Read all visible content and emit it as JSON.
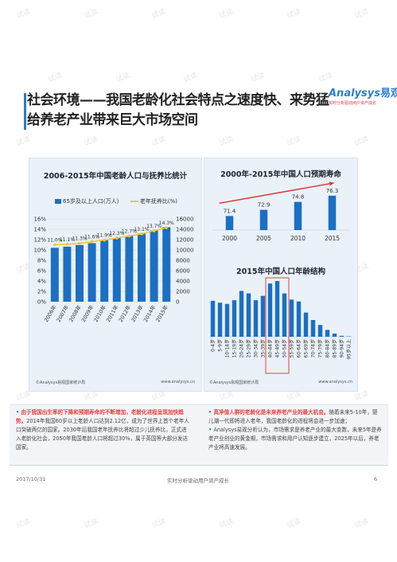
{
  "watermark": "试读",
  "title": {
    "line1": "社会环境——我国老龄化社会特点之速度快、来势猛",
    "line2": "给养老产业带来巨大市场空间"
  },
  "logo": {
    "brand_prefix": "Analysys",
    "brand_cn": "易观",
    "slogan": "实时分析驱动用户资产成长"
  },
  "left_panel": {
    "source": "©Analysys易观国家统计局",
    "site": "www.analysys.cn"
  },
  "right_panel": {
    "source": "©Analysys易观国家统计局",
    "site": "www.analysys.cn"
  },
  "colors": {
    "bar": "#1b6fc4",
    "line": "#f2c43a",
    "arrow": "#e03030",
    "accent": "#2a7fd0",
    "highlight": "#e84040"
  },
  "chart_data": [
    {
      "type": "bar",
      "title": "2006-2015年中国老龄人口与抚养比统计",
      "categories": [
        "2006年",
        "2007年",
        "2008年",
        "2009年",
        "2010年",
        "2011年",
        "2012年",
        "2013年",
        "2014年",
        "2015年"
      ],
      "series": [
        {
          "name": "65岁及以上人口(万人)",
          "type": "bar",
          "axis": "right",
          "values": [
            10419,
            10636,
            10956,
            11307,
            11894,
            12288,
            12714,
            13161,
            13755,
            14386
          ]
        },
        {
          "name": "老年抚养比(%)",
          "type": "line",
          "axis": "left",
          "values": [
            11.0,
            11.1,
            11.3,
            11.6,
            11.9,
            12.3,
            12.7,
            13.1,
            13.7,
            14.3
          ],
          "labels": [
            "11.0%",
            "11.1%",
            "11.3%",
            "11.6%",
            "11.9%",
            "12.3%",
            "12.7%",
            "13.1%",
            "13.7%",
            "14.3%"
          ]
        }
      ],
      "yleft_ticks": [
        "16%",
        "14%",
        "12%",
        "10%",
        "8%",
        "6%",
        "4%",
        "2%",
        "0%"
      ],
      "yright_ticks": [
        "16000",
        "14000",
        "12000",
        "10000",
        "8000",
        "6000",
        "4000",
        "2000",
        "0"
      ],
      "yleft_lim": [
        0,
        16
      ],
      "yright_lim": [
        0,
        16000
      ],
      "legend": "top"
    },
    {
      "type": "bar",
      "title": "2000年-2015年中国人口预期寿命",
      "categories": [
        "2000",
        "2005",
        "2010",
        "2015"
      ],
      "values": [
        71.4,
        72.9,
        74.8,
        76.3
      ],
      "labels": [
        "71.4",
        "72.9",
        "74.8",
        "76.3"
      ],
      "ylim": [
        68,
        78
      ],
      "trend_arrow": true
    },
    {
      "type": "bar",
      "title": "2015年中国人口年龄结构",
      "categories": [
        "0-4岁",
        "5-9岁",
        "10-14岁",
        "15-19岁",
        "20-24岁",
        "25-29岁",
        "30-34岁",
        "35-39岁",
        "40-44岁",
        "45-49岁",
        "50-54岁",
        "55-59岁",
        "60-64岁",
        "65-69岁",
        "70-74岁",
        "75-79岁",
        "80-84岁",
        "85-89岁",
        "90-94岁",
        "95岁以上"
      ],
      "values": [
        5.8,
        5.5,
        5.3,
        5.9,
        7.4,
        7.0,
        5.9,
        6.6,
        8.6,
        9.0,
        7.0,
        6.0,
        5.7,
        3.9,
        2.7,
        1.9,
        1.1,
        0.5,
        0.15,
        0.05
      ],
      "highlight_range": [
        "40-44岁",
        "50-54岁"
      ]
    }
  ],
  "bottom": {
    "left_bullet": "•",
    "left_hl": "由于我国出生率的下降和预期寿命的不断增加，老龄化进程呈现加快趋势。",
    "left_rest": "2014年我国60岁以上老龄人口达到2.12亿，成为了世界上首个老年人口突破两亿的国家。2030年后我国老年抚养比将超过少儿抚养比，正式进入老龄化社会，2050年我国老龄人口将超过30%，属于英国等大部分发达国家。",
    "right_bullets": [
      {
        "hl": "高净值人群的老龄化是未来养老产业的最大机会。",
        "rest": "随着未来5-10年，婴儿潮一代即将进入老年，我国老龄化的进程将会进一步加速；"
      },
      {
        "hl": "",
        "rest": "Analysys易观分析认为，市场需求是养老产业的最大变数，未来5年是养老产业创业的黄金期，市场需求和用户认知逐步建立，2025年以后，养老产业将高速发展。"
      }
    ]
  },
  "footer": {
    "date": "2017/10/31",
    "center": "实时分析驱动用户资产成长",
    "page": "6"
  }
}
